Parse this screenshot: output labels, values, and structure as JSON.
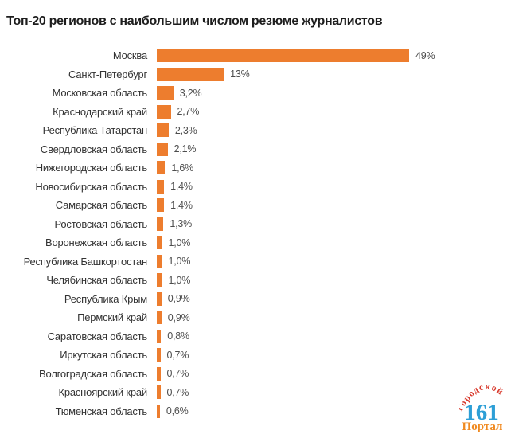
{
  "title": "Топ-20 регионов с наибольшим числом резюме журналистов",
  "colors": {
    "bar": "#ED7D2E",
    "title_text": "#1D1D1D",
    "category_text": "#333333",
    "value_text": "#4D4D4D",
    "logo_arc": "#D8392C",
    "logo_number": "#2D9FD6",
    "logo_portal": "#F0891F"
  },
  "chart_data": {
    "type": "bar",
    "orientation": "horizontal",
    "title": "Топ-20 регионов с наибольшим числом резюме журналистов",
    "xlabel": "",
    "ylabel": "",
    "unit": "%",
    "xlim": [
      0,
      52
    ],
    "grid": false,
    "legend": false,
    "categories": [
      "Москва",
      "Санкт-Петербург",
      "Московская область",
      "Краснодарский край",
      "Республика Татарстан",
      "Свердловская область",
      "Нижегородская область",
      "Новосибирская область",
      "Самарская область",
      "Ростовская область",
      "Воронежская область",
      "Республика Башкортостан",
      "Челябинская область",
      "Республика Крым",
      "Пермский край",
      "Саратовская область",
      "Иркутская область",
      "Волгоградская область",
      "Красноярский край",
      "Тюменская область"
    ],
    "values": [
      49,
      13,
      3.2,
      2.7,
      2.3,
      2.1,
      1.6,
      1.4,
      1.4,
      1.3,
      1.0,
      1.0,
      1.0,
      0.9,
      0.9,
      0.8,
      0.7,
      0.7,
      0.7,
      0.6
    ],
    "value_labels": [
      "49%",
      "13%",
      "3,2%",
      "2,7%",
      "2,3%",
      "2,1%",
      "1,6%",
      "1,4%",
      "1,4%",
      "1,3%",
      "1,0%",
      "1,0%",
      "1,0%",
      "0,9%",
      "0,9%",
      "0,8%",
      "0,7%",
      "0,7%",
      "0,7%",
      "0,6%"
    ]
  },
  "logo": {
    "arc_text": "Городской",
    "number": "161",
    "portal": "Портал"
  }
}
